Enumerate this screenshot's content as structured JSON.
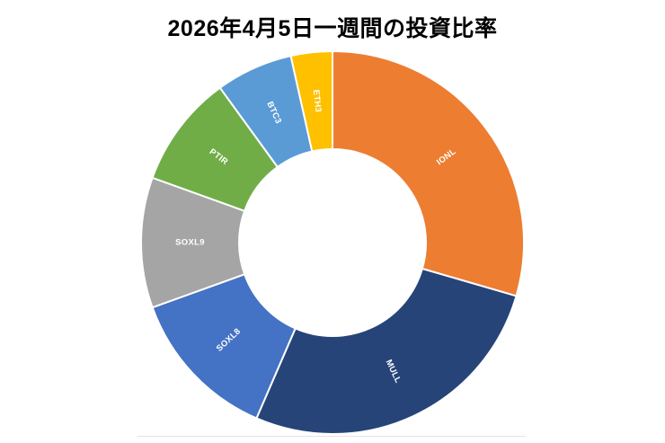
{
  "title": "2026年4月5日一週間の投資比率",
  "chart_data": {
    "type": "pie",
    "subtype": "donut",
    "title": "2026年4月5日一週間の投資比率",
    "categories": [
      "IONL",
      "MULL",
      "SOXL8",
      "SOXL9",
      "PTIR",
      "BTC3",
      "ETH3"
    ],
    "values": [
      29.5,
      27,
      13,
      11,
      9.5,
      6.5,
      3.5
    ],
    "unit": "percent-estimated-from-arc-angles",
    "colors": [
      "#ED7D31",
      "#264478",
      "#4472C4",
      "#A5A5A5",
      "#70AD47",
      "#5B9BD5",
      "#FFC000"
    ],
    "start_angle_deg": 0,
    "direction": "clockwise",
    "inner_radius_ratio": 0.49,
    "segment_gap_color": "#FFFFFF",
    "label_color": "#FFFFFF",
    "legend": "none",
    "background": "#FFFFFF"
  }
}
